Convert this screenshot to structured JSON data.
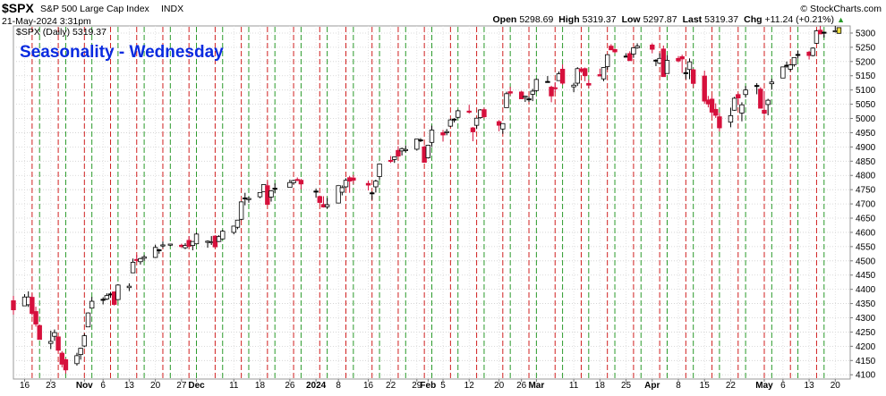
{
  "header": {
    "symbol": "$SPX",
    "name": "S&P 500 Large Cap Index",
    "exchange": "INDX",
    "date_time": "21-May-2024 3:31pm",
    "ohlc": [
      {
        "label": "Open",
        "value": "5298.69"
      },
      {
        "label": "High",
        "value": "5319.37"
      },
      {
        "label": "Low",
        "value": "5297.87"
      },
      {
        "label": "Last",
        "value": "5319.37"
      },
      {
        "label": "Chg",
        "value": "+11.24 (+0.21%)"
      }
    ],
    "arrow": "▲",
    "brand": "© StockCharts.com"
  },
  "overlay_title": "Seasonality - Wednesday",
  "colors": {
    "up": "#ffffff",
    "down": "#d6103c",
    "doji": "#000000",
    "last": "#f0e040",
    "wed_line": "#d02020",
    "fri_line": "#2a9a2a",
    "overlay": "#0a2be0"
  },
  "chart_data": {
    "type": "candlestick",
    "legend": "$SPX (Daily) 5319.37",
    "y_ticks": [
      4100,
      4150,
      4200,
      4250,
      4300,
      4350,
      4400,
      4450,
      4500,
      4550,
      4600,
      4650,
      4700,
      4750,
      4800,
      4850,
      4900,
      4950,
      5000,
      5050,
      5100,
      5150,
      5200,
      5250,
      5300
    ],
    "ylim": [
      4085,
      5325
    ],
    "x_date_range": [
      "2023-10-13",
      "2024-05-24"
    ],
    "x_ticks": [
      {
        "date": "2023-10-16",
        "label": "16",
        "bold": false
      },
      {
        "date": "2023-10-23",
        "label": "23",
        "bold": false
      },
      {
        "date": "2023-11-01",
        "label": "Nov",
        "bold": true
      },
      {
        "date": "2023-11-06",
        "label": "6",
        "bold": false
      },
      {
        "date": "2023-11-13",
        "label": "13",
        "bold": false
      },
      {
        "date": "2023-11-20",
        "label": "20",
        "bold": false
      },
      {
        "date": "2023-11-27",
        "label": "27",
        "bold": false
      },
      {
        "date": "2023-12-01",
        "label": "Dec",
        "bold": true
      },
      {
        "date": "2023-12-11",
        "label": "11",
        "bold": false
      },
      {
        "date": "2023-12-18",
        "label": "18",
        "bold": false
      },
      {
        "date": "2023-12-26",
        "label": "26",
        "bold": false
      },
      {
        "date": "2024-01-02",
        "label": "2024",
        "bold": true
      },
      {
        "date": "2024-01-08",
        "label": "8",
        "bold": false
      },
      {
        "date": "2024-01-16",
        "label": "16",
        "bold": false
      },
      {
        "date": "2024-01-22",
        "label": "22",
        "bold": false
      },
      {
        "date": "2024-01-29",
        "label": "29",
        "bold": false
      },
      {
        "date": "2024-02-01",
        "label": "Feb",
        "bold": true
      },
      {
        "date": "2024-02-05",
        "label": "5",
        "bold": false
      },
      {
        "date": "2024-02-12",
        "label": "12",
        "bold": false
      },
      {
        "date": "2024-02-20",
        "label": "20",
        "bold": false
      },
      {
        "date": "2024-02-26",
        "label": "26",
        "bold": false
      },
      {
        "date": "2024-03-01",
        "label": "Mar",
        "bold": true
      },
      {
        "date": "2024-03-11",
        "label": "11",
        "bold": false
      },
      {
        "date": "2024-03-18",
        "label": "18",
        "bold": false
      },
      {
        "date": "2024-03-25",
        "label": "25",
        "bold": false
      },
      {
        "date": "2024-04-01",
        "label": "Apr",
        "bold": true
      },
      {
        "date": "2024-04-08",
        "label": "8",
        "bold": false
      },
      {
        "date": "2024-04-15",
        "label": "15",
        "bold": false
      },
      {
        "date": "2024-04-22",
        "label": "22",
        "bold": false
      },
      {
        "date": "2024-05-01",
        "label": "May",
        "bold": true
      },
      {
        "date": "2024-05-06",
        "label": "6",
        "bold": false
      },
      {
        "date": "2024-05-13",
        "label": "13",
        "bold": false
      },
      {
        "date": "2024-05-20",
        "label": "20",
        "bold": false
      }
    ],
    "wednesday_lines": [
      "2023-10-18",
      "2023-10-25",
      "2023-11-01",
      "2023-11-08",
      "2023-11-15",
      "2023-11-22",
      "2023-11-29",
      "2023-12-06",
      "2023-12-13",
      "2023-12-20",
      "2023-12-27",
      "2024-01-03",
      "2024-01-10",
      "2024-01-17",
      "2024-01-24",
      "2024-01-31",
      "2024-02-07",
      "2024-02-14",
      "2024-02-21",
      "2024-02-28",
      "2024-03-06",
      "2024-03-13",
      "2024-03-20",
      "2024-03-27",
      "2024-04-03",
      "2024-04-10",
      "2024-04-17",
      "2024-04-24",
      "2024-05-01",
      "2024-05-08",
      "2024-05-15"
    ],
    "friday_lines": [
      "2023-10-20",
      "2023-10-27",
      "2023-11-03",
      "2023-11-10",
      "2023-11-17",
      "2023-11-24",
      "2023-12-01",
      "2023-12-08",
      "2023-12-15",
      "2023-12-22",
      "2023-12-29",
      "2024-01-05",
      "2024-01-12",
      "2024-01-19",
      "2024-01-26",
      "2024-02-02",
      "2024-02-09",
      "2024-02-16",
      "2024-02-23",
      "2024-03-01",
      "2024-03-08",
      "2024-03-15",
      "2024-03-22",
      "2024-03-29",
      "2024-04-05",
      "2024-04-12",
      "2024-04-19",
      "2024-04-26",
      "2024-05-03",
      "2024-05-10",
      "2024-05-17"
    ],
    "candles": [
      [
        "2023-10-13",
        4360,
        4377,
        4311,
        4328
      ],
      [
        "2023-10-16",
        4342,
        4383,
        4342,
        4373
      ],
      [
        "2023-10-17",
        4346,
        4393,
        4338,
        4373
      ],
      [
        "2023-10-18",
        4372,
        4385,
        4308,
        4315
      ],
      [
        "2023-10-19",
        4322,
        4339,
        4269,
        4278
      ],
      [
        "2023-10-20",
        4273,
        4276,
        4223,
        4224
      ],
      [
        "2023-10-23",
        4210,
        4255,
        4190,
        4217
      ],
      [
        "2023-10-24",
        4235,
        4259,
        4219,
        4248
      ],
      [
        "2023-10-25",
        4233,
        4233,
        4181,
        4186
      ],
      [
        "2023-10-26",
        4176,
        4183,
        4126,
        4137
      ],
      [
        "2023-10-27",
        4153,
        4157,
        4104,
        4117
      ],
      [
        "2023-10-30",
        4139,
        4177,
        4132,
        4167
      ],
      [
        "2023-10-31",
        4171,
        4195,
        4153,
        4193
      ],
      [
        "2023-11-01",
        4201,
        4245,
        4197,
        4237
      ],
      [
        "2023-11-02",
        4268,
        4319,
        4268,
        4317
      ],
      [
        "2023-11-03",
        4334,
        4373,
        4334,
        4358
      ],
      [
        "2023-11-06",
        4364,
        4372,
        4347,
        4365
      ],
      [
        "2023-11-07",
        4366,
        4386,
        4362,
        4378
      ],
      [
        "2023-11-08",
        4384,
        4391,
        4370,
        4383
      ],
      [
        "2023-11-09",
        4391,
        4393,
        4343,
        4347
      ],
      [
        "2023-11-10",
        4364,
        4418,
        4362,
        4415
      ],
      [
        "2023-11-13",
        4406,
        4421,
        4394,
        4411
      ],
      [
        "2023-11-14",
        4458,
        4508,
        4458,
        4495
      ],
      [
        "2023-11-15",
        4505,
        4521,
        4495,
        4502
      ],
      [
        "2023-11-16",
        4497,
        4511,
        4487,
        4508
      ],
      [
        "2023-11-17",
        4509,
        4521,
        4500,
        4514
      ],
      [
        "2023-11-20",
        4512,
        4557,
        4510,
        4547
      ],
      [
        "2023-11-21",
        4539,
        4542,
        4525,
        4538
      ],
      [
        "2023-11-22",
        4553,
        4568,
        4545,
        4556
      ],
      [
        "2023-11-24",
        4555,
        4560,
        4552,
        4559
      ],
      [
        "2023-11-27",
        4555,
        4560,
        4545,
        4550
      ],
      [
        "2023-11-28",
        4546,
        4562,
        4541,
        4554
      ],
      [
        "2023-11-29",
        4572,
        4587,
        4546,
        4551
      ],
      [
        "2023-11-30",
        4554,
        4569,
        4537,
        4568
      ],
      [
        "2023-12-01",
        4560,
        4599,
        4558,
        4594
      ],
      [
        "2023-12-04",
        4565,
        4572,
        4546,
        4569
      ],
      [
        "2023-12-05",
        4564,
        4587,
        4556,
        4567
      ],
      [
        "2023-12-06",
        4587,
        4590,
        4546,
        4549
      ],
      [
        "2023-12-07",
        4568,
        4590,
        4566,
        4585
      ],
      [
        "2023-12-08",
        4577,
        4609,
        4575,
        4604
      ],
      [
        "2023-12-11",
        4600,
        4623,
        4593,
        4622
      ],
      [
        "2023-12-12",
        4618,
        4644,
        4611,
        4643
      ],
      [
        "2023-12-13",
        4646,
        4709,
        4643,
        4707
      ],
      [
        "2023-12-14",
        4721,
        4739,
        4695,
        4719
      ],
      [
        "2023-12-15",
        4715,
        4725,
        4704,
        4719
      ],
      [
        "2023-12-18",
        4725,
        4741,
        4720,
        4740
      ],
      [
        "2023-12-19",
        4743,
        4768,
        4743,
        4768
      ],
      [
        "2023-12-20",
        4764,
        4779,
        4698,
        4698
      ],
      [
        "2023-12-21",
        4724,
        4748,
        4708,
        4746
      ],
      [
        "2023-12-22",
        4753,
        4772,
        4737,
        4755
      ],
      [
        "2023-12-26",
        4758,
        4785,
        4758,
        4775
      ],
      [
        "2023-12-27",
        4774,
        4785,
        4768,
        4782
      ],
      [
        "2023-12-28",
        4786,
        4793,
        4780,
        4783
      ],
      [
        "2023-12-29",
        4783,
        4788,
        4751,
        4770
      ],
      [
        "2024-01-02",
        4745,
        4754,
        4722,
        4743
      ],
      [
        "2024-01-03",
        4726,
        4729,
        4700,
        4705
      ],
      [
        "2024-01-04",
        4698,
        4727,
        4687,
        4689
      ],
      [
        "2024-01-05",
        4690,
        4721,
        4683,
        4697
      ],
      [
        "2024-01-08",
        4703,
        4764,
        4703,
        4764
      ],
      [
        "2024-01-09",
        4741,
        4765,
        4730,
        4757
      ],
      [
        "2024-01-10",
        4760,
        4790,
        4756,
        4783
      ],
      [
        "2024-01-11",
        4792,
        4798,
        4739,
        4780
      ],
      [
        "2024-01-12",
        4791,
        4802,
        4769,
        4783
      ],
      [
        "2024-01-16",
        4772,
        4782,
        4747,
        4766
      ],
      [
        "2024-01-17",
        4739,
        4744,
        4714,
        4739
      ],
      [
        "2024-01-18",
        4760,
        4785,
        4740,
        4780
      ],
      [
        "2024-01-19",
        4796,
        4842,
        4785,
        4840
      ],
      [
        "2024-01-22",
        4853,
        4868,
        4844,
        4850
      ],
      [
        "2024-01-23",
        4856,
        4866,
        4844,
        4865
      ],
      [
        "2024-01-24",
        4888,
        4903,
        4865,
        4868
      ],
      [
        "2024-01-25",
        4886,
        4898,
        4870,
        4894
      ],
      [
        "2024-01-26",
        4888,
        4906,
        4881,
        4891
      ],
      [
        "2024-01-29",
        4892,
        4928,
        4887,
        4928
      ],
      [
        "2024-01-30",
        4925,
        4931,
        4917,
        4924
      ],
      [
        "2024-01-31",
        4900,
        4906,
        4845,
        4846
      ],
      [
        "2024-02-01",
        4862,
        4906,
        4859,
        4906
      ],
      [
        "2024-02-02",
        4916,
        4975,
        4900,
        4959
      ],
      [
        "2024-02-05",
        4950,
        4960,
        4919,
        4942
      ],
      [
        "2024-02-06",
        4951,
        4963,
        4941,
        4954
      ],
      [
        "2024-02-07",
        4973,
        4999,
        4970,
        4995
      ],
      [
        "2024-02-08",
        4996,
        5001,
        4986,
        4998
      ],
      [
        "2024-02-09",
        5004,
        5031,
        5000,
        5027
      ],
      [
        "2024-02-12",
        5026,
        5048,
        5017,
        5022
      ],
      [
        "2024-02-13",
        4967,
        4970,
        4920,
        4953
      ],
      [
        "2024-02-14",
        4976,
        5002,
        4963,
        5001
      ],
      [
        "2024-02-15",
        5003,
        5033,
        4999,
        5030
      ],
      [
        "2024-02-16",
        5031,
        5038,
        4999,
        5006
      ],
      [
        "2024-02-20",
        4989,
        4994,
        4955,
        4976
      ],
      [
        "2024-02-21",
        4963,
        4983,
        4946,
        4982
      ],
      [
        "2024-02-22",
        5038,
        5094,
        5038,
        5087
      ],
      [
        "2024-02-23",
        5094,
        5111,
        5081,
        5089
      ],
      [
        "2024-02-26",
        5093,
        5097,
        5068,
        5069
      ],
      [
        "2024-02-27",
        5074,
        5080,
        5058,
        5078
      ],
      [
        "2024-02-28",
        5067,
        5077,
        5058,
        5069
      ],
      [
        "2024-02-29",
        5085,
        5104,
        5061,
        5096
      ],
      [
        "2024-03-01",
        5098,
        5140,
        5094,
        5137
      ],
      [
        "2024-03-04",
        5130,
        5149,
        5127,
        5130
      ],
      [
        "2024-03-05",
        5110,
        5115,
        5057,
        5079
      ],
      [
        "2024-03-06",
        5108,
        5128,
        5092,
        5105
      ],
      [
        "2024-03-07",
        5133,
        5165,
        5132,
        5157
      ],
      [
        "2024-03-08",
        5173,
        5190,
        5118,
        5124
      ],
      [
        "2024-03-11",
        5111,
        5125,
        5092,
        5117
      ],
      [
        "2024-03-12",
        5124,
        5180,
        5114,
        5175
      ],
      [
        "2024-03-13",
        5174,
        5180,
        5160,
        5165
      ],
      [
        "2024-03-14",
        5175,
        5179,
        5131,
        5150
      ],
      [
        "2024-03-15",
        5123,
        5136,
        5105,
        5117
      ],
      [
        "2024-03-18",
        5154,
        5175,
        5150,
        5149
      ],
      [
        "2024-03-19",
        5139,
        5180,
        5131,
        5179
      ],
      [
        "2024-03-20",
        5182,
        5225,
        5171,
        5224
      ],
      [
        "2024-03-21",
        5254,
        5261,
        5240,
        5241
      ],
      [
        "2024-03-22",
        5242,
        5246,
        5229,
        5234
      ],
      [
        "2024-03-25",
        5219,
        5229,
        5216,
        5218
      ],
      [
        "2024-03-26",
        5228,
        5236,
        5203,
        5203
      ],
      [
        "2024-03-27",
        5226,
        5249,
        5213,
        5248
      ],
      [
        "2024-03-28",
        5248,
        5264,
        5245,
        5254
      ],
      [
        "2024-04-01",
        5258,
        5264,
        5229,
        5243
      ],
      [
        "2024-04-02",
        5204,
        5208,
        5184,
        5205
      ],
      [
        "2024-04-03",
        5194,
        5229,
        5192,
        5211
      ],
      [
        "2024-04-04",
        5244,
        5256,
        5146,
        5147
      ],
      [
        "2024-04-05",
        5158,
        5222,
        5157,
        5204
      ],
      [
        "2024-04-08",
        5211,
        5219,
        5197,
        5202
      ],
      [
        "2024-04-09",
        5217,
        5224,
        5160,
        5209
      ],
      [
        "2024-04-10",
        5160,
        5178,
        5138,
        5161
      ],
      [
        "2024-04-11",
        5172,
        5211,
        5138,
        5199
      ],
      [
        "2024-04-12",
        5171,
        5175,
        5107,
        5123
      ],
      [
        "2024-04-15",
        5149,
        5168,
        5052,
        5061
      ],
      [
        "2024-04-16",
        5065,
        5079,
        5039,
        5051
      ],
      [
        "2024-04-17",
        5068,
        5078,
        5008,
        5022
      ],
      [
        "2024-04-18",
        5032,
        5053,
        5002,
        5011
      ],
      [
        "2024-04-19",
        5006,
        5020,
        4954,
        4967
      ],
      [
        "2024-04-22",
        4987,
        5038,
        4969,
        5010
      ],
      [
        "2024-04-23",
        5029,
        5076,
        5027,
        5071
      ],
      [
        "2024-04-24",
        5084,
        5089,
        5047,
        5072
      ],
      [
        "2024-04-25",
        5019,
        5057,
        4990,
        5048
      ],
      [
        "2024-04-26",
        5084,
        5114,
        5073,
        5100
      ],
      [
        "2024-04-29",
        5114,
        5124,
        5085,
        5116
      ],
      [
        "2024-04-30",
        5103,
        5110,
        5035,
        5036
      ],
      [
        "2024-05-01",
        5029,
        5096,
        5013,
        5018
      ],
      [
        "2024-05-02",
        5049,
        5069,
        5011,
        5064
      ],
      [
        "2024-05-03",
        5122,
        5139,
        5101,
        5128
      ],
      [
        "2024-05-06",
        5142,
        5181,
        5142,
        5181
      ],
      [
        "2024-05-07",
        5187,
        5200,
        5178,
        5187
      ],
      [
        "2024-05-08",
        5173,
        5191,
        5165,
        5188
      ],
      [
        "2024-05-09",
        5189,
        5215,
        5182,
        5214
      ],
      [
        "2024-05-10",
        5225,
        5239,
        5210,
        5223
      ],
      [
        "2024-05-13",
        5233,
        5237,
        5207,
        5221
      ],
      [
        "2024-05-14",
        5221,
        5250,
        5218,
        5247
      ],
      [
        "2024-05-15",
        5264,
        5311,
        5263,
        5308
      ],
      [
        "2024-05-16",
        5310,
        5325,
        5296,
        5297
      ],
      [
        "2024-05-17",
        5303,
        5305,
        5284,
        5303
      ],
      [
        "2024-05-20",
        5305,
        5325,
        5302,
        5308
      ],
      [
        "2024-05-21",
        5299,
        5319,
        5298,
        5319
      ]
    ]
  }
}
